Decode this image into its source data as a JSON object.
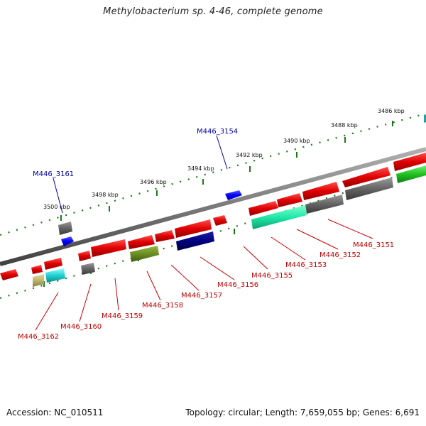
{
  "title": "Methylobacterium sp. 4-46, complete genome",
  "footer": {
    "accession": "Accession: NC_010511",
    "summary": "Topology: circular; Length: 7,659,055 bp; Genes: 6,691"
  },
  "scale_labels": [
    "3486 kbp",
    "3488 kbp",
    "3490 kbp",
    "3492 kbp",
    "3494 kbp",
    "3496 kbp",
    "3498 kbp",
    "3500 kbp"
  ],
  "gene_labels_forward": [
    "M446_3154",
    "M446_3161"
  ],
  "gene_labels_reverse": [
    "M446_3151",
    "M446_3152",
    "M446_3153",
    "M446_3155",
    "M446_3156",
    "M446_3157",
    "M446_3158",
    "M446_3159",
    "M446_3160",
    "M446_3162"
  ],
  "colors": {
    "backbone": "#808080",
    "forward_tick": "#1a7a1a",
    "label_forward": "#0000b0",
    "label_reverse": "#c00000",
    "gene_red": "#e00000",
    "gene_blue": "#0000ff",
    "gene_gray": "#606060",
    "gene_navy": "#000080",
    "gene_olive": "#6b8e23",
    "gene_mint": "#20e0a0",
    "gene_green": "#20c020",
    "gene_cyan": "#20d0d0",
    "gene_khaki": "#bdb76b"
  }
}
